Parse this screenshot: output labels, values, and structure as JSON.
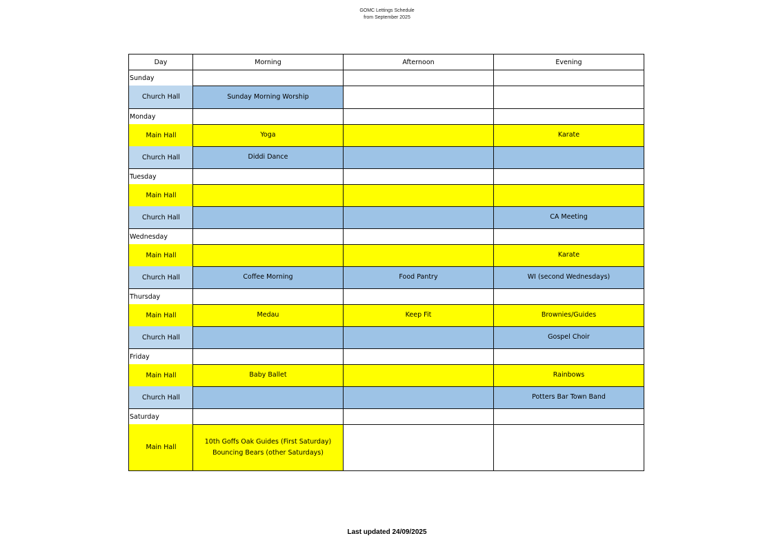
{
  "document": {
    "title": "GOMC Lettings Schedule",
    "subtitle": "from September 2025",
    "footer": "Last updated 24/09/2025"
  },
  "colors": {
    "main_hall": "#ffff00",
    "church_hall_label": "#bdd7ee",
    "church_hall_cell": "#9dc3e6"
  },
  "table": {
    "headers": [
      "Day",
      "Morning",
      "Afternoon",
      "Evening"
    ],
    "days": [
      {
        "day": "Sunday",
        "halls": [
          {
            "hall": "Church Hall",
            "type": "church",
            "cells": [
              "Sunday Morning Worship",
              "",
              ""
            ],
            "filled": [
              true,
              false,
              false
            ]
          }
        ]
      },
      {
        "day": "Monday",
        "halls": [
          {
            "hall": "Main Hall",
            "type": "main",
            "cells": [
              "Yoga",
              "",
              "Karate"
            ],
            "filled": [
              true,
              true,
              true
            ]
          },
          {
            "hall": "Church Hall",
            "type": "church",
            "cells": [
              "Diddi Dance",
              "",
              ""
            ],
            "filled": [
              true,
              true,
              true
            ]
          }
        ]
      },
      {
        "day": "Tuesday",
        "halls": [
          {
            "hall": "Main Hall",
            "type": "main",
            "cells": [
              "",
              "",
              ""
            ],
            "filled": [
              true,
              true,
              true
            ]
          },
          {
            "hall": "Church Hall",
            "type": "church",
            "cells": [
              "",
              "",
              "CA Meeting"
            ],
            "filled": [
              true,
              true,
              true
            ]
          }
        ]
      },
      {
        "day": "Wednesday",
        "halls": [
          {
            "hall": "Main Hall",
            "type": "main",
            "cells": [
              "",
              "",
              "Karate"
            ],
            "filled": [
              true,
              true,
              true
            ]
          },
          {
            "hall": "Church Hall",
            "type": "church",
            "cells": [
              "Coffee Morning",
              "Food Pantry",
              "WI (second Wednesdays)"
            ],
            "filled": [
              true,
              true,
              true
            ]
          }
        ]
      },
      {
        "day": "Thursday",
        "halls": [
          {
            "hall": "Main Hall",
            "type": "main",
            "cells": [
              "Medau",
              "Keep Fit",
              "Brownies/Guides"
            ],
            "filled": [
              true,
              true,
              true
            ]
          },
          {
            "hall": "Church Hall",
            "type": "church",
            "cells": [
              "",
              "",
              "Gospel Choir"
            ],
            "filled": [
              true,
              true,
              true
            ]
          }
        ]
      },
      {
        "day": "Friday",
        "halls": [
          {
            "hall": "Main Hall",
            "type": "main",
            "cells": [
              "Baby Ballet",
              "",
              "Rainbows"
            ],
            "filled": [
              true,
              true,
              true
            ]
          },
          {
            "hall": "Church Hall",
            "type": "church",
            "cells": [
              "",
              "",
              "Potters Bar Town Band"
            ],
            "filled": [
              true,
              true,
              true
            ]
          }
        ]
      },
      {
        "day": "Saturday",
        "halls": [
          {
            "hall": "Main Hall",
            "type": "main",
            "cells": [
              "10th Goffs Oak Guides (First Saturday)\nBouncing Bears (other Saturdays)",
              "",
              ""
            ],
            "filled": [
              true,
              false,
              false
            ]
          }
        ]
      }
    ]
  }
}
